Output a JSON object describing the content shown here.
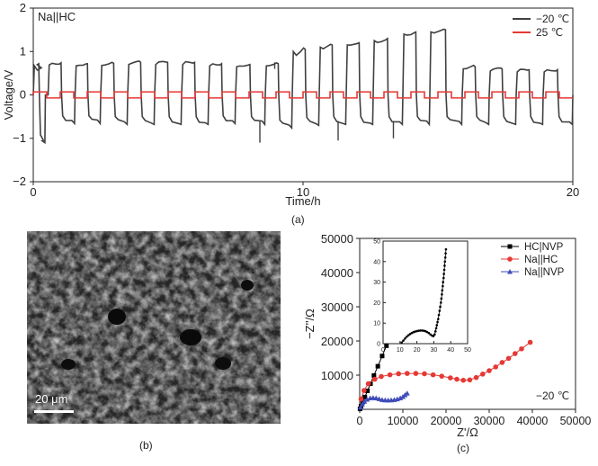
{
  "panel_labels": {
    "a": "(a)",
    "b": "(b)",
    "c": "(c)"
  },
  "sem": {
    "scale_bar_label": "20 μm"
  },
  "chart_data": [
    {
      "id": "a",
      "type": "line",
      "title": "",
      "annotation": "Na||HC",
      "xlabel": "Time/h",
      "ylabel": "Voltage/V",
      "xlim": [
        0,
        20
      ],
      "ylim": [
        -2,
        2
      ],
      "xticks": [
        "0",
        "10",
        "20"
      ],
      "yticks": [
        "−2",
        "−1",
        "0",
        "1",
        "2"
      ],
      "legend_position": "top-right",
      "cycles": [
        {
          "start": 0.0,
          "dur": 0.45,
          "vc": 0.72,
          "vd": -1.02,
          "slope": 0.25
        },
        {
          "start": 0.55,
          "dur": 1.0,
          "vc": 0.74,
          "vd": -0.58,
          "slope": 0.02
        },
        {
          "start": 1.55,
          "dur": 0.95,
          "vc": 0.72,
          "vd": -0.58,
          "slope": 0.02
        },
        {
          "start": 2.5,
          "dur": 1.0,
          "vc": 0.73,
          "vd": -0.6,
          "slope": 0.02
        },
        {
          "start": 3.5,
          "dur": 1.0,
          "vc": 0.75,
          "vd": -0.6,
          "slope": 0.02
        },
        {
          "start": 4.5,
          "dur": 1.0,
          "vc": 0.75,
          "vd": -0.6,
          "slope": 0.02
        },
        {
          "start": 5.5,
          "dur": 1.0,
          "vc": 0.75,
          "vd": -0.6,
          "slope": 0.02
        },
        {
          "start": 6.5,
          "dur": 1.0,
          "vc": 0.72,
          "vd": -0.58,
          "slope": 0.02
        },
        {
          "start": 7.5,
          "dur": 1.1,
          "vc": 0.7,
          "vd": -0.6,
          "slope": 0.02
        },
        {
          "start": 8.6,
          "dur": 1.0,
          "vc": 0.72,
          "vd": -0.68,
          "slope": 0.02
        },
        {
          "start": 9.6,
          "dur": 1.0,
          "vc": 1.05,
          "vd": -0.62,
          "slope": 0.18
        },
        {
          "start": 10.6,
          "dur": 1.0,
          "vc": 1.15,
          "vd": -0.6,
          "slope": 0.15
        },
        {
          "start": 11.6,
          "dur": 1.0,
          "vc": 1.2,
          "vd": -0.6,
          "slope": 0.12
        },
        {
          "start": 12.6,
          "dur": 1.1,
          "vc": 1.3,
          "vd": -0.6,
          "slope": 0.15
        },
        {
          "start": 13.7,
          "dur": 1.0,
          "vc": 1.45,
          "vd": -0.6,
          "slope": 0.08
        },
        {
          "start": 14.7,
          "dur": 1.2,
          "vc": 1.5,
          "vd": -0.6,
          "slope": 0.06
        },
        {
          "start": 15.9,
          "dur": 1.0,
          "vc": 0.65,
          "vd": -0.6,
          "slope": 0.04
        },
        {
          "start": 16.9,
          "dur": 1.0,
          "vc": 0.6,
          "vd": -0.6,
          "slope": 0.03
        },
        {
          "start": 17.9,
          "dur": 1.0,
          "vc": 0.58,
          "vd": -0.6,
          "slope": 0.03
        },
        {
          "start": 18.9,
          "dur": 1.1,
          "vc": 0.58,
          "vd": -0.6,
          "slope": 0.03
        }
      ],
      "spikes": [
        {
          "x": 8.4,
          "y": -1.1
        },
        {
          "x": 8.95,
          "y": 0.75
        },
        {
          "x": 11.3,
          "y": -1.05
        },
        {
          "x": 13.35,
          "y": -1.0
        }
      ],
      "series": [
        {
          "name": "−20 ℃",
          "color": "#404040",
          "amplitude_V": 0.65
        },
        {
          "name": "25 ℃",
          "color": "#e53935",
          "amplitude_V": 0.07,
          "period_h": 1.0
        }
      ]
    },
    {
      "id": "c",
      "type": "scatter",
      "xlabel": "Z'/Ω",
      "ylabel": "−Z''/Ω",
      "xlim": [
        0,
        50000
      ],
      "ylim": [
        0,
        50000
      ],
      "xticks": [
        "0",
        "10000",
        "20000",
        "30000",
        "40000",
        "50000"
      ],
      "yticks": [
        "10000",
        "20000",
        "30000",
        "40000",
        "50000"
      ],
      "annotation": "−20 ℃",
      "legend_position": "top-right",
      "series": [
        {
          "name": "HC|NVP",
          "color": "#000000",
          "marker": "square",
          "points": [
            [
              80,
              150
            ],
            [
              300,
              900
            ],
            [
              700,
              2100
            ],
            [
              1200,
              3600
            ],
            [
              1800,
              5400
            ],
            [
              2500,
              7500
            ],
            [
              3300,
              9900
            ],
            [
              4200,
              12600
            ],
            [
              5200,
              15600
            ],
            [
              6200,
              18600
            ]
          ]
        },
        {
          "name": "Na||HC",
          "color": "#e53935",
          "marker": "circle",
          "points": [
            [
              300,
              3000
            ],
            [
              1000,
              5500
            ],
            [
              2000,
              7500
            ],
            [
              3500,
              8800
            ],
            [
              5000,
              9600
            ],
            [
              7000,
              10100
            ],
            [
              9000,
              10400
            ],
            [
              11000,
              10500
            ],
            [
              13000,
              10500
            ],
            [
              15000,
              10400
            ],
            [
              17000,
              10100
            ],
            [
              19000,
              9700
            ],
            [
              21000,
              9200
            ],
            [
              22500,
              8800
            ],
            [
              24000,
              8500
            ],
            [
              25500,
              8600
            ],
            [
              27000,
              9300
            ],
            [
              28500,
              10300
            ],
            [
              30000,
              11300
            ],
            [
              31500,
              12400
            ],
            [
              33000,
              13700
            ],
            [
              34500,
              14900
            ],
            [
              36000,
              16300
            ],
            [
              37500,
              17700
            ],
            [
              39500,
              19600
            ]
          ]
        },
        {
          "name": "Na||NVP",
          "color": "#3f4cb8",
          "marker": "triangle",
          "points": [
            [
              200,
              600
            ],
            [
              600,
              1500
            ],
            [
              1100,
              2300
            ],
            [
              1700,
              2900
            ],
            [
              2400,
              3300
            ],
            [
              3100,
              3400
            ],
            [
              3800,
              3300
            ],
            [
              4500,
              3050
            ],
            [
              5200,
              2800
            ],
            [
              5900,
              2700
            ],
            [
              6600,
              2650
            ],
            [
              7300,
              2700
            ],
            [
              8000,
              2800
            ],
            [
              8700,
              3000
            ],
            [
              9400,
              3300
            ],
            [
              10000,
              3700
            ],
            [
              10500,
              4200
            ],
            [
              11000,
              4700
            ]
          ]
        }
      ],
      "inset": {
        "xlim": [
          0,
          50
        ],
        "ylim": [
          0,
          50
        ],
        "xticks": [
          "0",
          "10",
          "20",
          "30",
          "40",
          "50"
        ],
        "yticks": [
          "0",
          "10",
          "20",
          "30",
          "40",
          "50"
        ],
        "points": [
          [
            11,
            0.5
          ],
          [
            12,
            1.5
          ],
          [
            13,
            2.5
          ],
          [
            14,
            3.4
          ],
          [
            15,
            4.1
          ],
          [
            16,
            4.7
          ],
          [
            17,
            5.2
          ],
          [
            18,
            5.6
          ],
          [
            19,
            5.9
          ],
          [
            20,
            6.1
          ],
          [
            21,
            6.3
          ],
          [
            22,
            6.4
          ],
          [
            23,
            6.4
          ],
          [
            24,
            6.3
          ],
          [
            25,
            6.1
          ],
          [
            26,
            5.7
          ],
          [
            27,
            5.2
          ],
          [
            28,
            4.5
          ],
          [
            29,
            3.9
          ],
          [
            29.8,
            3.7
          ],
          [
            30.5,
            4.5
          ],
          [
            31,
            6
          ],
          [
            31.4,
            7.5
          ],
          [
            31.8,
            9
          ],
          [
            32.2,
            10.5
          ],
          [
            32.6,
            12
          ],
          [
            33,
            14
          ],
          [
            33.4,
            16
          ],
          [
            33.8,
            18
          ],
          [
            34.2,
            20
          ],
          [
            34.5,
            22
          ],
          [
            34.8,
            24
          ],
          [
            35,
            26
          ],
          [
            35.3,
            28
          ],
          [
            35.5,
            30
          ],
          [
            35.8,
            32
          ],
          [
            36,
            34
          ],
          [
            36.2,
            36
          ],
          [
            36.4,
            38
          ],
          [
            36.6,
            40
          ],
          [
            36.8,
            42
          ],
          [
            37,
            44
          ],
          [
            37.2,
            46
          ]
        ]
      }
    }
  ]
}
